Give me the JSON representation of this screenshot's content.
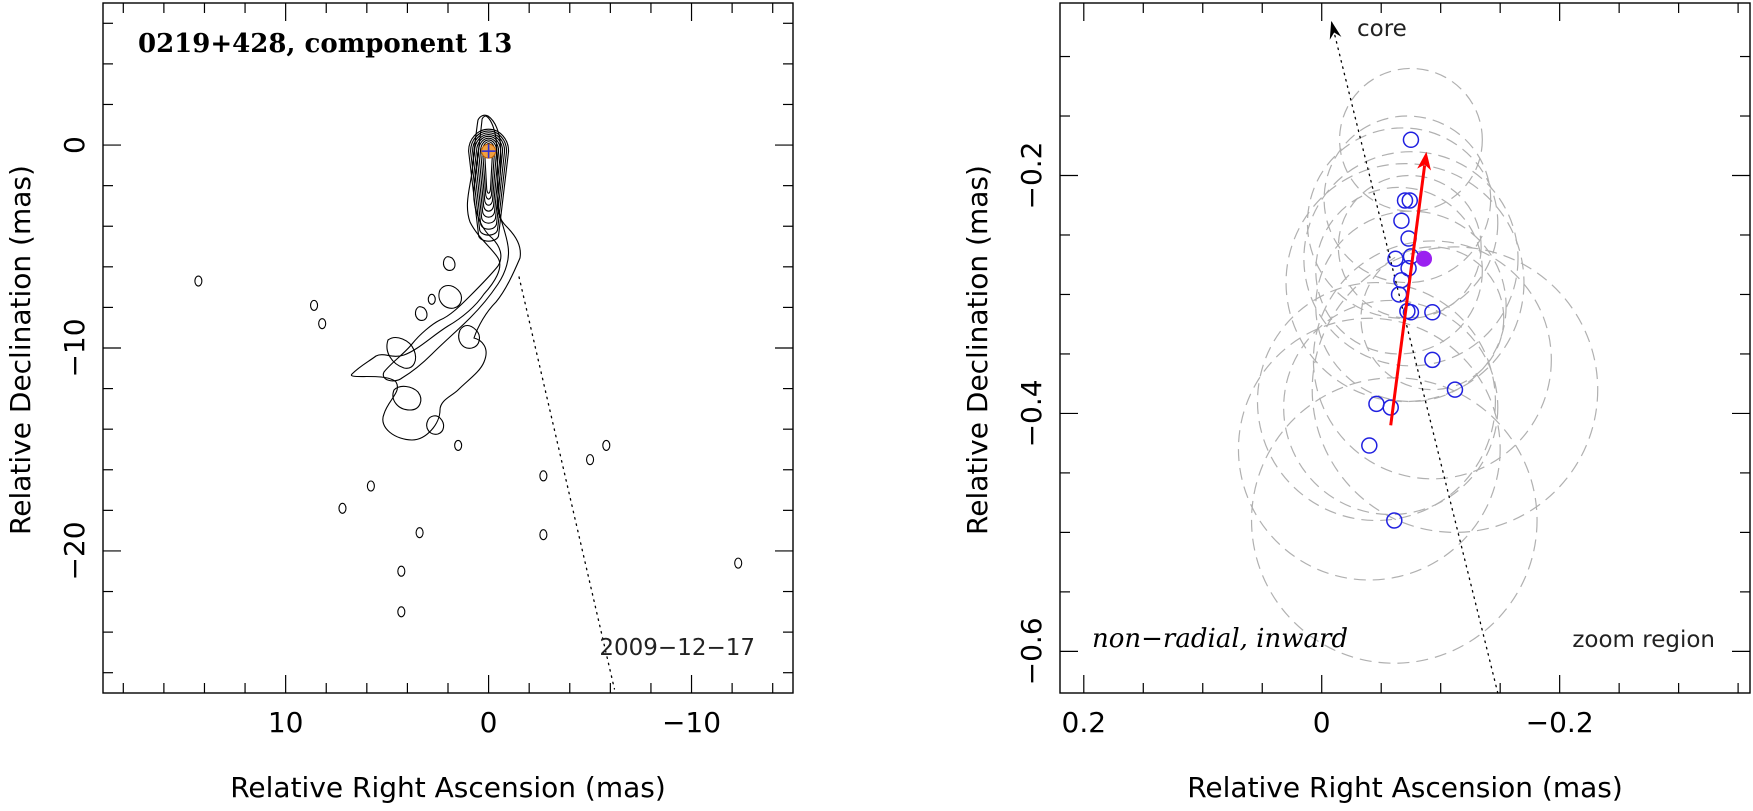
{
  "chart_data": [
    {
      "type": "contour",
      "title": "0219+428, component 13",
      "xlabel": "Relative Right Ascension (mas)",
      "ylabel": "Relative Declination (mas)",
      "xlim": [
        19,
        -15
      ],
      "ylim": [
        -27,
        7
      ],
      "xticks": [
        10,
        0,
        -10
      ],
      "xtick_labels": [
        "10",
        "0",
        "−10"
      ],
      "yticks": [
        0,
        -10,
        -20
      ],
      "ytick_labels": [
        "0",
        "−10",
        "−20"
      ],
      "epoch_label": "2009−12−17",
      "core": {
        "x": 0,
        "y": -0.3
      },
      "jet_direction_line": {
        "from": [
          -1.5,
          -6.5
        ],
        "to": [
          -6.2,
          -26.8
        ]
      },
      "isolated_contours": [
        {
          "x": 14.3,
          "y": -6.7
        },
        {
          "x": 8.6,
          "y": -7.9
        },
        {
          "x": 8.2,
          "y": -8.8
        },
        {
          "x": 2.8,
          "y": -7.6
        },
        {
          "x": 5.8,
          "y": -16.8
        },
        {
          "x": 7.2,
          "y": -17.9
        },
        {
          "x": 3.4,
          "y": -19.1
        },
        {
          "x": 4.3,
          "y": -21.0
        },
        {
          "x": 4.3,
          "y": -23.0
        },
        {
          "x": -2.7,
          "y": -16.3
        },
        {
          "x": -2.7,
          "y": -19.2
        },
        {
          "x": -5.0,
          "y": -15.5
        },
        {
          "x": -5.8,
          "y": -14.8
        },
        {
          "x": -12.3,
          "y": -20.6
        },
        {
          "x": 1.5,
          "y": -14.8
        }
      ]
    },
    {
      "type": "scatter",
      "xlabel": "Relative Right Ascension (mas)",
      "ylabel": "Relative Declination (mas)",
      "xlim": [
        0.22,
        -0.36
      ],
      "ylim": [
        -0.635,
        -0.055
      ],
      "xticks": [
        0.2,
        0,
        -0.2
      ],
      "xtick_labels": [
        "0.2",
        "0",
        "−0.2"
      ],
      "yticks": [
        -0.2,
        -0.4,
        -0.6
      ],
      "ytick_labels": [
        "−0.2",
        "−0.4",
        "−0.6"
      ],
      "annotation_core": "core",
      "annotation_motion": "non−radial, inward",
      "annotation_region": "zoom region",
      "positions": [
        {
          "x": -0.075,
          "y": -0.17
        },
        {
          "x": -0.07,
          "y": -0.221
        },
        {
          "x": -0.074,
          "y": -0.221
        },
        {
          "x": -0.067,
          "y": -0.238
        },
        {
          "x": -0.073,
          "y": -0.253
        },
        {
          "x": -0.075,
          "y": -0.268
        },
        {
          "x": -0.062,
          "y": -0.27
        },
        {
          "x": -0.073,
          "y": -0.278
        },
        {
          "x": -0.067,
          "y": -0.288
        },
        {
          "x": -0.065,
          "y": -0.3
        },
        {
          "x": -0.072,
          "y": -0.314
        },
        {
          "x": -0.075,
          "y": -0.315
        },
        {
          "x": -0.093,
          "y": -0.315
        },
        {
          "x": -0.093,
          "y": -0.355
        },
        {
          "x": -0.112,
          "y": -0.38
        },
        {
          "x": -0.046,
          "y": -0.392
        },
        {
          "x": -0.058,
          "y": -0.395
        },
        {
          "x": -0.04,
          "y": -0.427
        },
        {
          "x": -0.061,
          "y": -0.49
        }
      ],
      "mean_position": {
        "x": -0.086,
        "y": -0.27
      },
      "motion_vector": {
        "from": [
          -0.058,
          -0.41
        ],
        "to": [
          -0.088,
          -0.18
        ]
      },
      "core_direction_line": {
        "from": [
          -0.148,
          -0.635
        ],
        "to": [
          -0.008,
          -0.07
        ]
      },
      "uncertainty_circles": [
        {
          "x": -0.075,
          "y": -0.17,
          "r": 0.06
        },
        {
          "x": -0.072,
          "y": -0.22,
          "r": 0.07
        },
        {
          "x": -0.068,
          "y": -0.24,
          "r": 0.08
        },
        {
          "x": -0.074,
          "y": -0.26,
          "r": 0.06
        },
        {
          "x": -0.075,
          "y": -0.27,
          "r": 0.09
        },
        {
          "x": -0.065,
          "y": -0.28,
          "r": 0.07
        },
        {
          "x": -0.07,
          "y": -0.29,
          "r": 0.1
        },
        {
          "x": -0.075,
          "y": -0.31,
          "r": 0.08
        },
        {
          "x": -0.093,
          "y": -0.32,
          "r": 0.06
        },
        {
          "x": -0.093,
          "y": -0.355,
          "r": 0.1
        },
        {
          "x": -0.112,
          "y": -0.38,
          "r": 0.12
        },
        {
          "x": -0.046,
          "y": -0.39,
          "r": 0.1
        },
        {
          "x": -0.058,
          "y": -0.395,
          "r": 0.09
        },
        {
          "x": -0.04,
          "y": -0.43,
          "r": 0.11
        },
        {
          "x": -0.061,
          "y": -0.49,
          "r": 0.12
        }
      ]
    }
  ],
  "colors": {
    "axis": "#000000",
    "contour": "#000000",
    "core_marker_fill": "#f0a040",
    "core_marker_cross": "#3030d0",
    "position_circle": "#2020e0",
    "mean_position": "#9a20f0",
    "motion_vector": "#ff0000",
    "uncertainty": "#b0b0b0",
    "dotted_line": "#000000"
  }
}
